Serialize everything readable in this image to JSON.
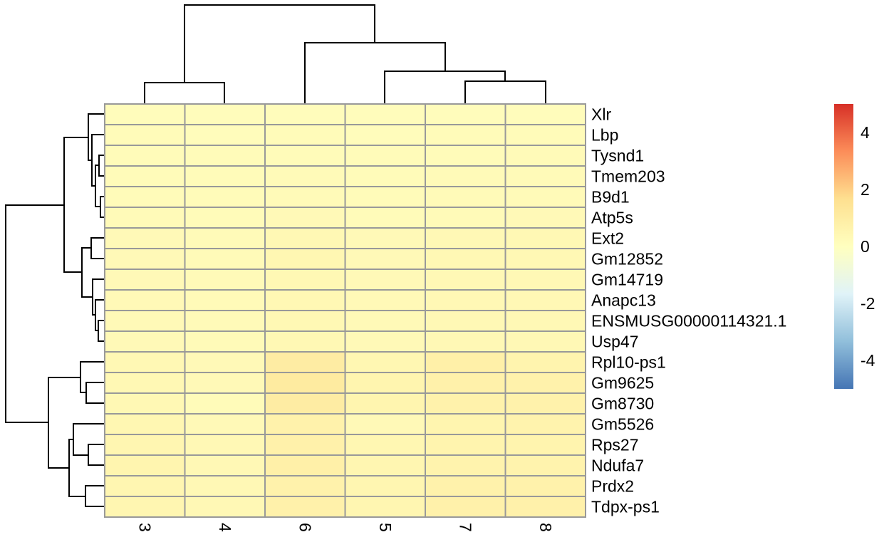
{
  "chart_data": {
    "type": "heatmap",
    "title": "",
    "xlabel": "",
    "ylabel": "",
    "columns": [
      "3",
      "4",
      "6",
      "5",
      "7",
      "8"
    ],
    "rows": [
      "Xlr",
      "Lbp",
      "Tysnd1",
      "Tmem203",
      "B9d1",
      "Atp5s",
      "Ext2",
      "Gm12852",
      "Gm14719",
      "Anapc13",
      "ENSMUSG00000114321.1",
      "Usp47",
      "Rpl10-ps1",
      "Gm9625",
      "Gm8730",
      "Gm5526",
      "Rps27",
      "Ndufa7",
      "Prdx2",
      "Tdpx-ps1"
    ],
    "values": [
      [
        0.15,
        0.15,
        0.15,
        0.15,
        0.15,
        0.15
      ],
      [
        0.2,
        0.15,
        0.2,
        0.15,
        0.2,
        0.2
      ],
      [
        0.2,
        0.2,
        0.2,
        0.2,
        0.2,
        0.25
      ],
      [
        0.2,
        0.2,
        0.25,
        0.2,
        0.25,
        0.25
      ],
      [
        0.2,
        0.2,
        0.25,
        0.2,
        0.25,
        0.25
      ],
      [
        0.25,
        0.2,
        0.3,
        0.2,
        0.25,
        0.3
      ],
      [
        0.3,
        0.25,
        0.4,
        0.3,
        0.35,
        0.4
      ],
      [
        0.3,
        0.25,
        0.45,
        0.3,
        0.4,
        0.4
      ],
      [
        0.3,
        0.25,
        0.4,
        0.3,
        0.35,
        0.35
      ],
      [
        0.3,
        0.25,
        0.4,
        0.3,
        0.35,
        0.35
      ],
      [
        0.3,
        0.25,
        0.4,
        0.3,
        0.35,
        0.35
      ],
      [
        0.3,
        0.25,
        0.4,
        0.3,
        0.35,
        0.35
      ],
      [
        0.4,
        0.3,
        1.0,
        0.45,
        0.8,
        0.6
      ],
      [
        0.4,
        0.3,
        1.1,
        0.55,
        0.75,
        0.7
      ],
      [
        0.4,
        0.2,
        1.0,
        0.55,
        0.7,
        0.7
      ],
      [
        0.45,
        0.3,
        0.7,
        0.3,
        0.55,
        0.65
      ],
      [
        0.5,
        0.35,
        0.75,
        0.45,
        0.6,
        0.6
      ],
      [
        0.55,
        0.35,
        0.8,
        0.5,
        0.65,
        0.65
      ],
      [
        0.5,
        0.35,
        0.7,
        0.5,
        0.7,
        0.7
      ],
      [
        0.5,
        0.35,
        0.75,
        0.5,
        0.75,
        0.75
      ]
    ],
    "color_scale": {
      "min": -5,
      "max": 5,
      "stops": [
        "#4575B4",
        "#91BFDB",
        "#E0F3F8",
        "#FFFFBF",
        "#FEE090",
        "#FC8D59",
        "#D73027"
      ],
      "ticks": [
        "4",
        "2",
        "0",
        "-2",
        "-4"
      ],
      "tick_values": [
        4,
        2,
        0,
        -2,
        -4
      ]
    },
    "column_dendrogram": true,
    "row_dendrogram": true,
    "legend": "right",
    "grid": true
  }
}
